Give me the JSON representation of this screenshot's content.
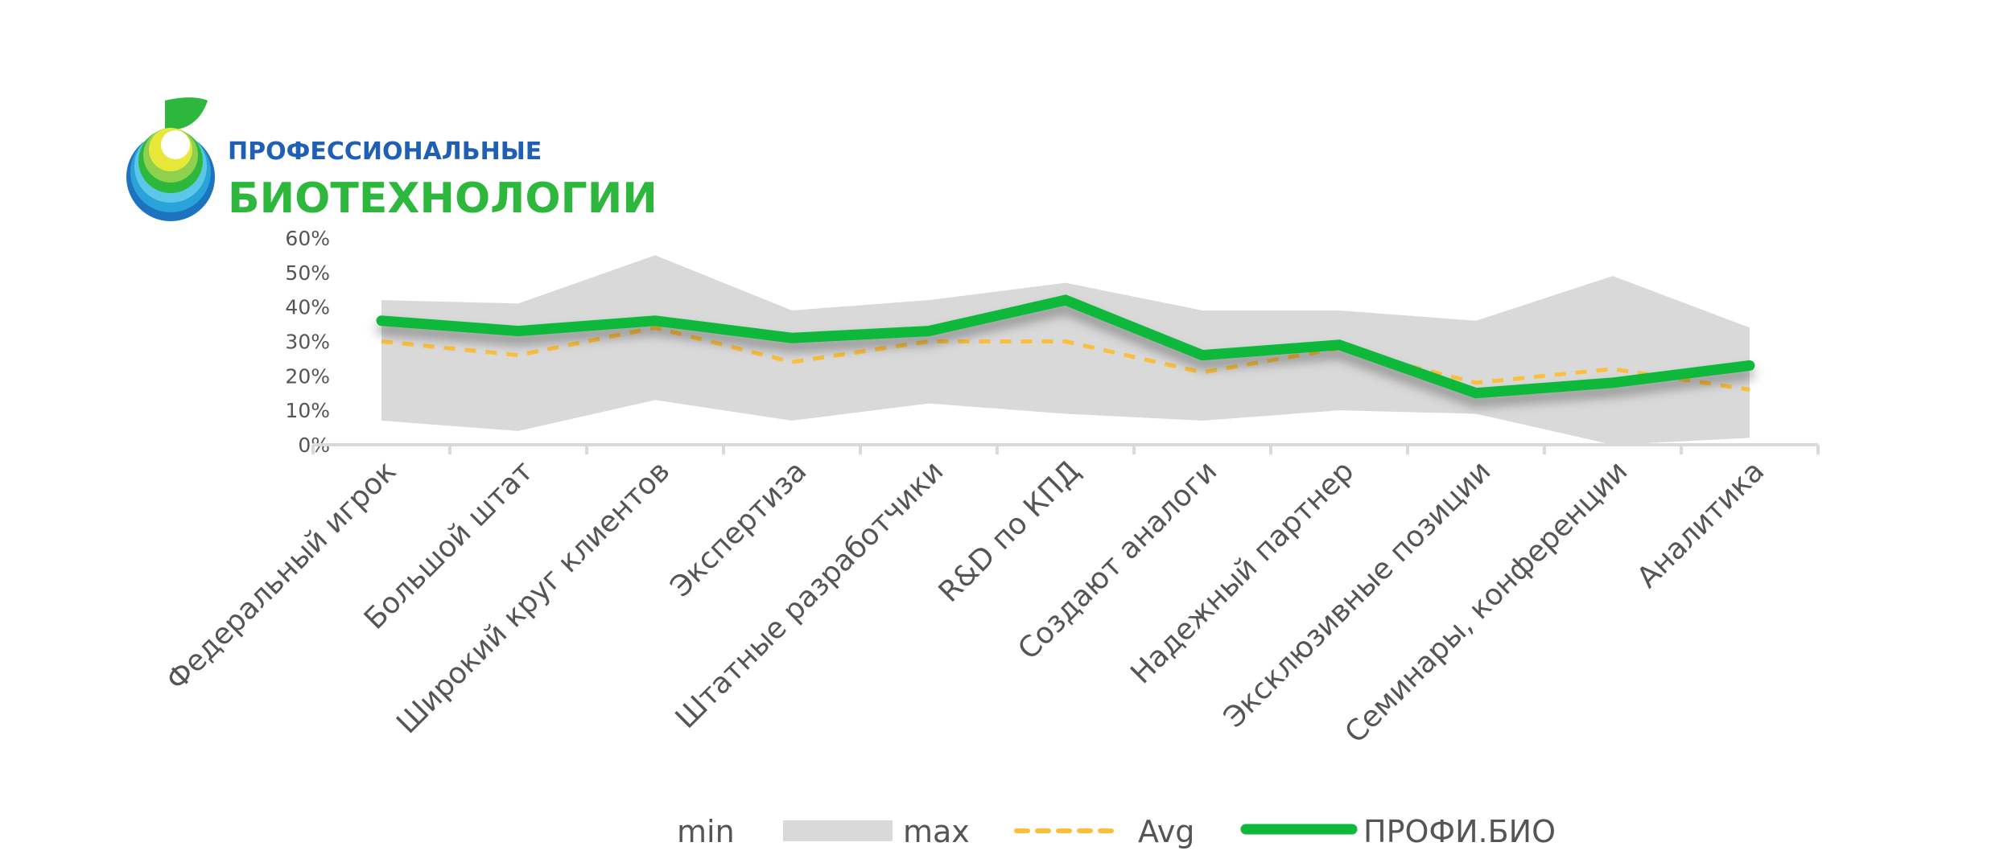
{
  "logo": {
    "line1": "ПРОФЕССИОНАЛЬНЫЕ",
    "line2": "БИОТЕХНОЛОГИИ"
  },
  "chart_data": {
    "type": "line",
    "title": "",
    "xlabel": "",
    "ylabel": "",
    "ylim": [
      0,
      60
    ],
    "yticks": [
      "0%",
      "10%",
      "20%",
      "30%",
      "40%",
      "50%",
      "60%"
    ],
    "categories": [
      "Федеральный игрок",
      "Большой штат",
      "Широкий круг клиентов",
      "Экспертиза",
      "Штатные разработчики",
      "R&D по КПД",
      "Создают аналоги",
      "Надежный партнер",
      "Эксклюзивные позиции",
      "Семинары, конференции",
      "Аналитика"
    ],
    "series": [
      {
        "name": "min",
        "type": "band-lower",
        "values": [
          7,
          4,
          13,
          7,
          12,
          9,
          7,
          10,
          9,
          0,
          2
        ]
      },
      {
        "name": "max",
        "type": "band-upper",
        "color": "#d9d9d9",
        "values": [
          42,
          41,
          55,
          39,
          42,
          47,
          39,
          39,
          36,
          49,
          34
        ]
      },
      {
        "name": "Avg",
        "type": "dashed-line",
        "color": "#fbbf3c",
        "values": [
          30,
          26,
          34,
          24,
          30,
          30,
          21,
          28,
          18,
          22,
          16
        ]
      },
      {
        "name": "ПРОФИ.БИО",
        "type": "line",
        "color": "#0db83a",
        "values": [
          36,
          33,
          36,
          31,
          33,
          42,
          26,
          29,
          15,
          18,
          23
        ]
      }
    ],
    "legend": {
      "position": "bottom",
      "labels": [
        "min",
        "max",
        "Avg",
        "ПРОФИ.БИО"
      ]
    },
    "grid": false
  }
}
